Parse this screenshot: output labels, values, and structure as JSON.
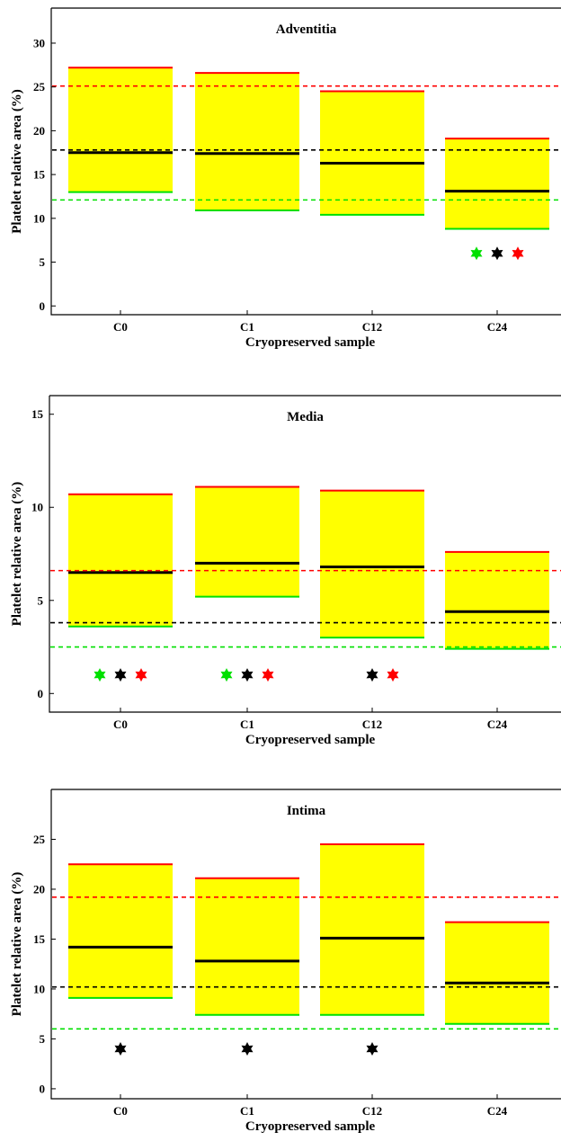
{
  "chart_data": [
    {
      "type": "bar",
      "title": "Adventitia",
      "xlabel": "Cryopreserved sample",
      "ylabel": "Platelet relative area (%)",
      "categories": [
        "C0",
        "C1",
        "C12",
        "C24"
      ],
      "ylim": [
        -1,
        34
      ],
      "yticks": [
        0,
        5,
        10,
        15,
        20,
        25,
        30
      ],
      "boxes": [
        {
          "category": "C0",
          "low": 13.0,
          "median": 17.5,
          "high": 27.2
        },
        {
          "category": "C1",
          "low": 10.9,
          "median": 17.4,
          "high": 26.6
        },
        {
          "category": "C12",
          "low": 10.4,
          "median": 16.3,
          "high": 24.5
        },
        {
          "category": "C24",
          "low": 8.8,
          "median": 13.1,
          "high": 19.1
        }
      ],
      "reference_lines": {
        "low": 12.1,
        "median": 17.8,
        "high": 25.1
      },
      "markers": [
        {
          "category": "C24",
          "type": "low"
        },
        {
          "category": "C24",
          "type": "median"
        },
        {
          "category": "C24",
          "type": "high"
        }
      ],
      "marker_y": 6.0,
      "grid": false,
      "colors": {
        "box_fill": "#ffff00",
        "low": "#00e000",
        "median": "#000000",
        "high": "#ff0000"
      }
    },
    {
      "type": "bar",
      "title": "Media",
      "xlabel": "Cryopreserved sample",
      "ylabel": "Platelet relative area (%)",
      "categories": [
        "C0",
        "C1",
        "C12",
        "C24"
      ],
      "ylim": [
        -1,
        16
      ],
      "yticks": [
        0,
        5,
        10,
        15
      ],
      "boxes": [
        {
          "category": "C0",
          "low": 3.6,
          "median": 6.5,
          "high": 10.7
        },
        {
          "category": "C1",
          "low": 5.2,
          "median": 7.0,
          "high": 11.1
        },
        {
          "category": "C12",
          "low": 3.0,
          "median": 6.8,
          "high": 10.9
        },
        {
          "category": "C24",
          "low": 2.4,
          "median": 4.4,
          "high": 7.6
        }
      ],
      "reference_lines": {
        "low": 2.5,
        "median": 3.8,
        "high": 6.6
      },
      "markers": [
        {
          "category": "C0",
          "type": "low"
        },
        {
          "category": "C0",
          "type": "median"
        },
        {
          "category": "C0",
          "type": "high"
        },
        {
          "category": "C1",
          "type": "low"
        },
        {
          "category": "C1",
          "type": "median"
        },
        {
          "category": "C1",
          "type": "high"
        },
        {
          "category": "C12",
          "type": "median"
        },
        {
          "category": "C12",
          "type": "high"
        }
      ],
      "marker_y": 1.0,
      "grid": false,
      "colors": {
        "box_fill": "#ffff00",
        "low": "#00e000",
        "median": "#000000",
        "high": "#ff0000"
      }
    },
    {
      "type": "bar",
      "title": "Intima",
      "xlabel": "Cryopreserved sample",
      "ylabel": "Platelet relative area (%)",
      "categories": [
        "C0",
        "C1",
        "C12",
        "C24"
      ],
      "ylim": [
        -1,
        30
      ],
      "yticks": [
        0,
        5,
        10,
        15,
        20,
        25
      ],
      "boxes": [
        {
          "category": "C0",
          "low": 9.1,
          "median": 14.2,
          "high": 22.5
        },
        {
          "category": "C1",
          "low": 7.4,
          "median": 12.8,
          "high": 21.1
        },
        {
          "category": "C12",
          "low": 7.4,
          "median": 15.1,
          "high": 24.5
        },
        {
          "category": "C24",
          "low": 6.5,
          "median": 10.6,
          "high": 16.7
        }
      ],
      "reference_lines": {
        "low": 6.0,
        "median": 10.2,
        "high": 19.2
      },
      "markers": [
        {
          "category": "C0",
          "type": "median"
        },
        {
          "category": "C1",
          "type": "median"
        },
        {
          "category": "C12",
          "type": "median"
        }
      ],
      "marker_y": 4.0,
      "grid": false,
      "colors": {
        "box_fill": "#ffff00",
        "low": "#00e000",
        "median": "#000000",
        "high": "#ff0000"
      }
    }
  ]
}
